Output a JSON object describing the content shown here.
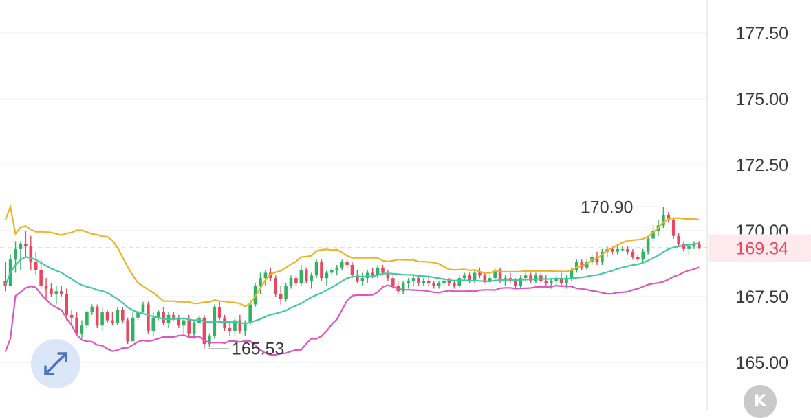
{
  "chart_data": {
    "type": "candlestick",
    "y_axis": {
      "position": "right",
      "ticks": [
        "177.50",
        "175.00",
        "172.50",
        "170.00",
        "167.50",
        "165.00"
      ],
      "tick_values": [
        177.5,
        175.0,
        172.5,
        170.0,
        167.5,
        165.0
      ],
      "range": [
        164.0,
        179.0
      ]
    },
    "annotations": {
      "high": {
        "label": "170.90",
        "value": 170.9
      },
      "low": {
        "label": "165.53",
        "value": 165.53
      },
      "current": {
        "label": "169.34",
        "value": 169.34
      }
    },
    "colors": {
      "up": "#2fb35f",
      "down": "#e8485e",
      "upper_band": "#f0b323",
      "middle_band": "#3fc9a6",
      "lower_band": "#dd55be",
      "current_price": "#e8485e",
      "grid": "#eeeeee"
    },
    "candles": [
      [
        168.1,
        168.8,
        167.7,
        167.9
      ],
      [
        167.9,
        169.1,
        167.9,
        168.9
      ],
      [
        168.9,
        169.6,
        168.4,
        169.3
      ],
      [
        169.3,
        169.6,
        168.5,
        169.5
      ],
      [
        169.5,
        170.0,
        169.0,
        169.4
      ],
      [
        169.4,
        169.8,
        168.5,
        168.8
      ],
      [
        168.8,
        169.2,
        168.3,
        168.5
      ],
      [
        168.5,
        168.9,
        167.8,
        167.9
      ],
      [
        167.9,
        168.2,
        167.4,
        167.8
      ],
      [
        167.8,
        168.0,
        167.5,
        167.6
      ],
      [
        167.6,
        167.9,
        167.2,
        167.7
      ],
      [
        167.7,
        167.9,
        167.5,
        167.6
      ],
      [
        167.6,
        167.8,
        166.6,
        166.8
      ],
      [
        166.8,
        167.0,
        166.4,
        166.7
      ],
      [
        166.7,
        166.9,
        166.0,
        166.1
      ],
      [
        166.1,
        166.6,
        165.9,
        166.4
      ],
      [
        166.4,
        167.0,
        166.3,
        166.9
      ],
      [
        166.9,
        167.2,
        166.8,
        167.1
      ],
      [
        167.1,
        167.2,
        166.3,
        166.4
      ],
      [
        166.4,
        167.1,
        166.2,
        166.9
      ],
      [
        166.9,
        167.0,
        166.5,
        166.6
      ],
      [
        166.6,
        166.9,
        166.4,
        166.5
      ],
      [
        166.5,
        167.1,
        166.4,
        167.0
      ],
      [
        167.0,
        167.1,
        166.5,
        166.6
      ],
      [
        166.6,
        166.7,
        165.7,
        165.8
      ],
      [
        165.8,
        166.9,
        165.8,
        166.7
      ],
      [
        166.7,
        167.0,
        166.6,
        166.9
      ],
      [
        166.9,
        167.3,
        166.9,
        167.2
      ],
      [
        167.2,
        167.3,
        166.1,
        166.2
      ],
      [
        166.2,
        166.9,
        166.0,
        166.7
      ],
      [
        166.7,
        167.0,
        166.6,
        166.9
      ],
      [
        166.9,
        167.1,
        166.4,
        166.5
      ],
      [
        166.5,
        166.9,
        166.3,
        166.8
      ],
      [
        166.8,
        166.9,
        166.6,
        166.7
      ],
      [
        166.7,
        166.8,
        166.3,
        166.4
      ],
      [
        166.4,
        166.7,
        166.1,
        166.6
      ],
      [
        166.6,
        166.8,
        166.0,
        166.1
      ],
      [
        166.1,
        166.6,
        165.9,
        166.5
      ],
      [
        166.5,
        166.8,
        166.4,
        166.7
      ],
      [
        166.7,
        166.8,
        165.53,
        165.7
      ],
      [
        165.7,
        166.1,
        165.6,
        166.0
      ],
      [
        166.0,
        167.2,
        165.9,
        167.1
      ],
      [
        167.1,
        167.3,
        166.6,
        166.7
      ],
      [
        166.7,
        166.8,
        166.2,
        166.3
      ],
      [
        166.3,
        166.5,
        166.0,
        166.2
      ],
      [
        166.2,
        166.7,
        166.0,
        166.6
      ],
      [
        166.6,
        166.8,
        166.1,
        166.2
      ],
      [
        166.2,
        166.6,
        166.0,
        166.5
      ],
      [
        166.5,
        167.4,
        166.4,
        167.2
      ],
      [
        167.2,
        168.0,
        167.1,
        167.9
      ],
      [
        167.9,
        168.4,
        167.6,
        168.2
      ],
      [
        168.2,
        168.5,
        167.9,
        168.4
      ],
      [
        168.4,
        168.6,
        168.1,
        168.2
      ],
      [
        168.2,
        168.3,
        167.5,
        167.6
      ],
      [
        167.6,
        167.9,
        167.2,
        167.4
      ],
      [
        167.4,
        168.0,
        167.3,
        167.9
      ],
      [
        167.9,
        168.3,
        167.8,
        168.2
      ],
      [
        168.2,
        168.3,
        167.9,
        168.0
      ],
      [
        168.0,
        168.7,
        167.9,
        168.5
      ],
      [
        168.5,
        168.6,
        168.0,
        168.1
      ],
      [
        168.1,
        168.4,
        167.8,
        168.3
      ],
      [
        168.3,
        168.9,
        168.2,
        168.8
      ],
      [
        168.8,
        168.9,
        168.1,
        168.2
      ],
      [
        168.2,
        168.5,
        167.9,
        168.4
      ],
      [
        168.4,
        168.6,
        168.3,
        168.5
      ],
      [
        168.5,
        168.7,
        168.3,
        168.6
      ],
      [
        168.6,
        168.9,
        168.5,
        168.8
      ],
      [
        168.8,
        168.9,
        168.6,
        168.7
      ],
      [
        168.7,
        168.8,
        168.2,
        168.3
      ],
      [
        168.3,
        168.5,
        168.0,
        168.1
      ],
      [
        168.1,
        168.4,
        167.9,
        168.2
      ],
      [
        168.2,
        168.5,
        168.0,
        168.4
      ],
      [
        168.4,
        168.6,
        168.2,
        168.3
      ],
      [
        168.3,
        168.7,
        168.2,
        168.6
      ],
      [
        168.6,
        168.7,
        168.3,
        168.4
      ],
      [
        168.4,
        168.5,
        168.1,
        168.2
      ],
      [
        168.2,
        168.3,
        167.8,
        167.9
      ],
      [
        167.9,
        168.1,
        167.6,
        167.7
      ],
      [
        167.7,
        168.1,
        167.6,
        168.0
      ],
      [
        168.0,
        168.2,
        167.8,
        168.1
      ],
      [
        168.1,
        168.3,
        167.9,
        168.2
      ],
      [
        168.2,
        168.3,
        167.9,
        168.0
      ],
      [
        168.0,
        168.2,
        167.9,
        168.1
      ],
      [
        168.1,
        168.3,
        167.9,
        168.0
      ],
      [
        168.0,
        168.1,
        167.8,
        167.9
      ],
      [
        167.9,
        168.1,
        167.8,
        168.0
      ],
      [
        168.0,
        168.2,
        167.9,
        168.1
      ],
      [
        168.1,
        168.2,
        167.9,
        168.0
      ],
      [
        168.0,
        168.1,
        167.8,
        167.9
      ],
      [
        167.9,
        168.3,
        167.8,
        168.2
      ],
      [
        168.2,
        168.4,
        168.1,
        168.3
      ],
      [
        168.3,
        168.4,
        168.0,
        168.1
      ],
      [
        168.1,
        168.5,
        168.0,
        168.4
      ],
      [
        168.4,
        168.6,
        168.2,
        168.3
      ],
      [
        168.3,
        168.4,
        168.0,
        168.1
      ],
      [
        168.1,
        168.3,
        168.0,
        168.2
      ],
      [
        168.2,
        168.6,
        168.1,
        168.5
      ],
      [
        168.5,
        168.6,
        168.0,
        168.1
      ],
      [
        168.1,
        168.3,
        167.9,
        168.2
      ],
      [
        168.2,
        168.4,
        168.0,
        168.1
      ],
      [
        168.1,
        168.2,
        167.8,
        167.9
      ],
      [
        167.9,
        168.3,
        167.8,
        168.2
      ],
      [
        168.2,
        168.4,
        168.1,
        168.3
      ],
      [
        168.3,
        168.4,
        168.0,
        168.1
      ],
      [
        168.1,
        168.4,
        168.0,
        168.3
      ],
      [
        168.3,
        168.4,
        168.0,
        168.1
      ],
      [
        168.1,
        168.3,
        167.9,
        168.0
      ],
      [
        168.0,
        168.2,
        167.8,
        168.1
      ],
      [
        168.1,
        168.3,
        167.9,
        168.2
      ],
      [
        168.2,
        168.4,
        167.9,
        168.0
      ],
      [
        168.0,
        168.3,
        167.8,
        168.2
      ],
      [
        168.2,
        168.6,
        168.1,
        168.5
      ],
      [
        168.5,
        168.9,
        168.4,
        168.8
      ],
      [
        168.8,
        168.9,
        168.5,
        168.6
      ],
      [
        168.6,
        168.9,
        168.5,
        168.8
      ],
      [
        168.8,
        169.1,
        168.7,
        169.0
      ],
      [
        169.0,
        169.2,
        168.7,
        168.8
      ],
      [
        168.8,
        169.3,
        168.7,
        169.2
      ],
      [
        169.2,
        169.4,
        169.0,
        169.3
      ],
      [
        169.3,
        169.4,
        169.1,
        169.2
      ],
      [
        169.2,
        169.4,
        169.1,
        169.3
      ],
      [
        169.3,
        169.4,
        169.2,
        169.3
      ],
      [
        169.3,
        169.4,
        169.1,
        169.2
      ],
      [
        169.2,
        169.3,
        168.9,
        169.0
      ],
      [
        169.0,
        169.1,
        168.8,
        168.9
      ],
      [
        168.9,
        169.3,
        168.8,
        169.2
      ],
      [
        169.2,
        169.8,
        169.1,
        169.7
      ],
      [
        169.7,
        170.2,
        169.6,
        170.0
      ],
      [
        170.0,
        170.4,
        169.8,
        170.2
      ],
      [
        170.2,
        170.9,
        170.1,
        170.6
      ],
      [
        170.6,
        170.7,
        170.3,
        170.4
      ],
      [
        170.4,
        170.5,
        169.7,
        169.8
      ],
      [
        169.8,
        169.9,
        169.4,
        169.5
      ],
      [
        169.5,
        169.6,
        169.2,
        169.3
      ],
      [
        169.3,
        169.5,
        169.1,
        169.4
      ],
      [
        169.4,
        169.6,
        169.3,
        169.5
      ],
      [
        169.5,
        169.6,
        169.3,
        169.34
      ]
    ]
  }
}
